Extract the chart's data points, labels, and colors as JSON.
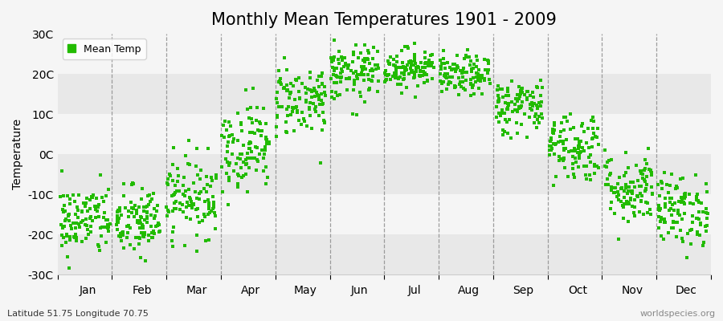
{
  "title": "Monthly Mean Temperatures 1901 - 2009",
  "ylabel": "Temperature",
  "xlabel_bottom_left": "Latitude 51.75 Longitude 70.75",
  "xlabel_bottom_right": "worldspecies.org",
  "legend_label": "Mean Temp",
  "dot_color": "#22bb00",
  "dot_size": 6,
  "ylim": [
    -30,
    30
  ],
  "yticks": [
    -30,
    -20,
    -10,
    0,
    10,
    20,
    30
  ],
  "ytick_labels": [
    "-30C",
    "-20C",
    "-10C",
    "0C",
    "10C",
    "20C",
    "30C"
  ],
  "bg_color": "#f5f5f5",
  "band_light": "#f5f5f5",
  "band_dark": "#e8e8e8",
  "months": [
    "Jan",
    "Feb",
    "Mar",
    "Apr",
    "May",
    "Jun",
    "Jul",
    "Aug",
    "Sep",
    "Oct",
    "Nov",
    "Dec"
  ],
  "monthly_means": [
    -16.5,
    -17.0,
    -10.5,
    2.0,
    13.5,
    20.0,
    21.5,
    19.5,
    12.0,
    2.0,
    -8.5,
    -14.0
  ],
  "monthly_stds": [
    4.5,
    4.5,
    5.0,
    5.5,
    4.5,
    3.5,
    2.5,
    2.5,
    3.5,
    4.5,
    4.5,
    4.5
  ],
  "n_years": 109,
  "title_fontsize": 15,
  "label_fontsize": 10,
  "tick_fontsize": 10
}
